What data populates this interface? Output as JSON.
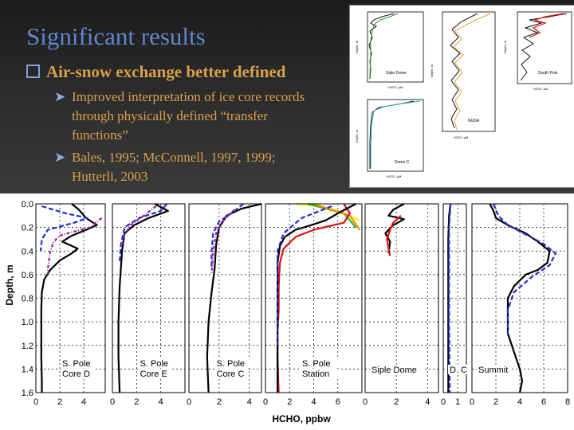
{
  "slide": {
    "title": "Significant results",
    "bullet": "Air-snow exchange better defined",
    "subbullets": [
      {
        "line1": "Improved interpretation of ice core records",
        "line2": "through physically defined “transfer",
        "line3": "functions”"
      },
      {
        "line1": "Bales, 1995; McConnell, 1997, 1999;",
        "line2": "Hutterli, 2003"
      }
    ],
    "colors": {
      "title": "#5f87c9",
      "text": "#d9a04a",
      "bullet_box": "#7fa0d8"
    }
  },
  "inset": {
    "panels": [
      {
        "label": "Siple Dome",
        "ylabel": "Depth, m",
        "xlabel": "H2O2, µM"
      },
      {
        "label": "NGSA",
        "ylabel": "Depth, m",
        "xlabel": "H2O2, µM"
      },
      {
        "label": "South Pole",
        "ylabel": "Depth, m",
        "xlabel": "H2O2, µM"
      },
      {
        "label": "Dome C",
        "ylabel": "Depth, m",
        "xlabel": "H2O2, µM"
      }
    ]
  },
  "chart_data": {
    "type": "line",
    "ylabel": "Depth, m",
    "xlabel": "HCHO, ppbw",
    "ylim": [
      1.6,
      0.0
    ],
    "yticks": [
      "0.0",
      "0.2",
      "0.4",
      "0.6",
      "0.8",
      "1.0",
      "1.2",
      "1.4",
      "1.6"
    ],
    "grid": true,
    "panels": [
      {
        "label_lines": [
          "S. Pole",
          "Core D"
        ],
        "xticks": [
          "0",
          "2",
          "4"
        ],
        "xlim": [
          0,
          5.8
        ],
        "series": [
          {
            "color": "#000000",
            "dash": "",
            "values": [
              [
                3.0,
                0.0
              ],
              [
                3.6,
                0.05
              ],
              [
                4.2,
                0.12
              ],
              [
                5.1,
                0.18
              ],
              [
                4.2,
                0.22
              ],
              [
                3.0,
                0.27
              ],
              [
                2.2,
                0.32
              ],
              [
                3.5,
                0.38
              ],
              [
                3.0,
                0.42
              ],
              [
                2.0,
                0.48
              ],
              [
                1.2,
                0.56
              ],
              [
                0.7,
                0.64
              ],
              [
                0.5,
                0.75
              ],
              [
                0.45,
                0.9
              ],
              [
                0.45,
                1.1
              ],
              [
                0.45,
                1.3
              ],
              [
                0.5,
                1.5
              ],
              [
                0.5,
                1.6
              ]
            ]
          },
          {
            "color": "#1f2fd0",
            "dash": "6,3",
            "values": [
              [
                0.5,
                0.02
              ],
              [
                2.5,
                0.08
              ],
              [
                4.3,
                0.12
              ],
              [
                3.2,
                0.16
              ],
              [
                1.0,
                0.22
              ],
              [
                0.5,
                0.3
              ],
              [
                0.4,
                0.4
              ]
            ]
          },
          {
            "color": "#a020a0",
            "dash": "4,2,1,2",
            "values": [
              [
                5.5,
                0.12
              ],
              [
                4.5,
                0.2
              ],
              [
                3.0,
                0.24
              ],
              [
                2.0,
                0.27
              ],
              [
                1.5,
                0.32
              ],
              [
                1.2,
                0.4
              ],
              [
                1.0,
                0.55
              ],
              [
                1.0,
                0.6
              ]
            ]
          }
        ]
      },
      {
        "label_lines": [
          "S. Pole",
          "Core E"
        ],
        "xticks": [
          "0",
          "2",
          "4"
        ],
        "xlim": [
          0,
          6.0
        ],
        "series": [
          {
            "color": "#000000",
            "dash": "",
            "values": [
              [
                3.5,
                0.0
              ],
              [
                4.6,
                0.06
              ],
              [
                3.0,
                0.12
              ],
              [
                1.8,
                0.18
              ],
              [
                1.0,
                0.25
              ],
              [
                0.8,
                0.4
              ],
              [
                0.6,
                0.7
              ],
              [
                0.5,
                1.0
              ],
              [
                0.5,
                1.3
              ],
              [
                0.6,
                1.6
              ]
            ]
          },
          {
            "color": "#1f2fd0",
            "dash": "6,3",
            "values": [
              [
                4.5,
                0.0
              ],
              [
                4.0,
                0.06
              ],
              [
                2.2,
                0.12
              ],
              [
                1.0,
                0.2
              ],
              [
                0.7,
                0.35
              ],
              [
                0.6,
                0.5
              ]
            ]
          },
          {
            "color": "#a020a0",
            "dash": "4,2,1,2",
            "values": [
              [
                3.6,
                0.02
              ],
              [
                2.6,
                0.1
              ],
              [
                1.5,
                0.18
              ],
              [
                1.0,
                0.26
              ],
              [
                0.8,
                0.35
              ]
            ]
          }
        ]
      },
      {
        "label_lines": [
          "S. Pole",
          "Core C"
        ],
        "xticks": [
          "0",
          "2",
          "4"
        ],
        "xlim": [
          0,
          4.8
        ],
        "series": [
          {
            "color": "#000000",
            "dash": "",
            "values": [
              [
                4.8,
                0.0
              ],
              [
                3.5,
                0.04
              ],
              [
                2.5,
                0.1
              ],
              [
                2.0,
                0.2
              ],
              [
                1.8,
                0.35
              ],
              [
                1.7,
                0.55
              ],
              [
                1.5,
                0.75
              ],
              [
                1.3,
                1.0
              ],
              [
                1.2,
                1.3
              ],
              [
                1.3,
                1.6
              ]
            ]
          },
          {
            "color": "#1f2fd0",
            "dash": "6,3",
            "values": [
              [
                3.6,
                0.0
              ],
              [
                2.8,
                0.08
              ],
              [
                2.0,
                0.15
              ],
              [
                1.6,
                0.25
              ],
              [
                1.5,
                0.4
              ],
              [
                1.5,
                0.55
              ]
            ]
          },
          {
            "color": "#a020a0",
            "dash": "4,2,1,2",
            "values": [
              [
                3.0,
                0.05
              ],
              [
                2.2,
                0.15
              ],
              [
                1.8,
                0.25
              ],
              [
                1.6,
                0.4
              ],
              [
                1.5,
                0.6
              ]
            ]
          }
        ]
      },
      {
        "label_lines": [
          "S. Pole",
          "Station"
        ],
        "xticks": [
          "0",
          "2",
          "4",
          "6"
        ],
        "xlim": [
          0,
          8.0
        ],
        "series": [
          {
            "color": "#ffee00",
            "dash": "",
            "values": [
              [
                2.5,
                0.0
              ],
              [
                4.5,
                0.02
              ],
              [
                6.0,
                0.06
              ],
              [
                7.8,
                0.14
              ]
            ]
          },
          {
            "color": "#20c020",
            "dash": "",
            "values": [
              [
                3.5,
                0.0
              ],
              [
                5.0,
                0.04
              ],
              [
                6.5,
                0.08
              ],
              [
                7.5,
                0.2
              ]
            ]
          },
          {
            "color": "#ff8800",
            "dash": "",
            "values": [
              [
                4.0,
                0.0
              ],
              [
                5.5,
                0.05
              ],
              [
                7.0,
                0.1
              ],
              [
                7.8,
                0.22
              ]
            ]
          },
          {
            "color": "#e01010",
            "dash": "",
            "values": [
              [
                6.5,
                0.0
              ],
              [
                7.0,
                0.08
              ],
              [
                6.5,
                0.16
              ],
              [
                4.0,
                0.22
              ],
              [
                2.5,
                0.28
              ],
              [
                1.5,
                0.38
              ],
              [
                1.2,
                0.5
              ],
              [
                1.1,
                0.7
              ],
              [
                1.1,
                0.9
              ],
              [
                1.0,
                1.1
              ],
              [
                1.0,
                1.3
              ],
              [
                1.1,
                1.6
              ]
            ]
          },
          {
            "color": "#000000",
            "dash": "",
            "values": [
              [
                7.5,
                0.0
              ],
              [
                6.0,
                0.08
              ],
              [
                5.0,
                0.14
              ],
              [
                3.8,
                0.18
              ],
              [
                2.5,
                0.22
              ],
              [
                1.6,
                0.28
              ],
              [
                1.2,
                0.36
              ],
              [
                1.0,
                0.5
              ],
              [
                1.0,
                0.7
              ],
              [
                1.0,
                0.9
              ],
              [
                1.0,
                1.2
              ],
              [
                1.0,
                1.6
              ]
            ]
          },
          {
            "color": "#1f2fd0",
            "dash": "6,3",
            "values": [
              [
                5.5,
                0.02
              ],
              [
                3.0,
                0.12
              ],
              [
                1.5,
                0.25
              ],
              [
                1.0,
                0.4
              ],
              [
                1.0,
                0.8
              ],
              [
                1.0,
                1.2
              ]
            ]
          }
        ]
      },
      {
        "label_lines": [
          "Siple Dome"
        ],
        "xticks": [
          "0",
          "2",
          "4"
        ],
        "xlim": [
          0,
          4.7
        ],
        "series": [
          {
            "color": "#000000",
            "dash": "",
            "values": [
              [
                2.5,
                0.0
              ],
              [
                1.8,
                0.05
              ],
              [
                1.5,
                0.1
              ],
              [
                2.5,
                0.13
              ],
              [
                1.8,
                0.18
              ],
              [
                1.3,
                0.25
              ],
              [
                1.6,
                0.32
              ],
              [
                1.5,
                0.42
              ]
            ]
          },
          {
            "color": "#e01010",
            "dash": "",
            "values": [
              [
                2.3,
                0.1
              ],
              [
                1.8,
                0.16
              ],
              [
                1.6,
                0.22
              ],
              [
                1.4,
                0.3
              ],
              [
                1.5,
                0.38
              ],
              [
                1.6,
                0.44
              ]
            ]
          }
        ]
      },
      {
        "label_lines": [
          "D. C"
        ],
        "xticks": [
          "0",
          "1"
        ],
        "xlim": [
          0,
          1.6
        ],
        "series": [
          {
            "color": "#000000",
            "dash": "",
            "values": [
              [
                0.5,
                0.0
              ],
              [
                0.4,
                0.1
              ],
              [
                0.35,
                0.3
              ],
              [
                0.35,
                0.6
              ],
              [
                0.35,
                1.0
              ],
              [
                0.35,
                1.6
              ]
            ]
          },
          {
            "color": "#1f2fd0",
            "dash": "6,3",
            "values": [
              [
                0.5,
                0.0
              ],
              [
                0.4,
                0.2
              ],
              [
                0.4,
                0.6
              ],
              [
                0.4,
                1.0
              ],
              [
                0.45,
                1.6
              ]
            ]
          }
        ]
      },
      {
        "label_lines": [
          "Summit"
        ],
        "xticks": [
          "0",
          "2",
          "4",
          "6",
          "8"
        ],
        "xlim": [
          0,
          8.0
        ],
        "series": [
          {
            "color": "#000000",
            "dash": "",
            "values": [
              [
                1.5,
                0.0
              ],
              [
                1.8,
                0.06
              ],
              [
                2.0,
                0.12
              ],
              [
                3.0,
                0.18
              ],
              [
                4.5,
                0.25
              ],
              [
                5.5,
                0.32
              ],
              [
                6.5,
                0.4
              ],
              [
                6.3,
                0.5
              ],
              [
                5.5,
                0.56
              ],
              [
                4.5,
                0.6
              ],
              [
                3.5,
                0.7
              ],
              [
                3.0,
                0.8
              ],
              [
                3.0,
                0.95
              ],
              [
                3.0,
                1.1
              ],
              [
                3.5,
                1.25
              ],
              [
                4.0,
                1.4
              ],
              [
                4.2,
                1.5
              ],
              [
                4.0,
                1.6
              ]
            ]
          },
          {
            "color": "#1f2fd0",
            "dash": "6,3",
            "values": [
              [
                1.8,
                0.0
              ],
              [
                2.2,
                0.1
              ],
              [
                3.0,
                0.18
              ],
              [
                4.5,
                0.26
              ],
              [
                6.0,
                0.34
              ],
              [
                7.0,
                0.42
              ],
              [
                6.5,
                0.52
              ],
              [
                5.0,
                0.62
              ],
              [
                3.5,
                0.75
              ],
              [
                3.0,
                0.9
              ],
              [
                3.0,
                1.1
              ]
            ]
          }
        ]
      }
    ]
  }
}
